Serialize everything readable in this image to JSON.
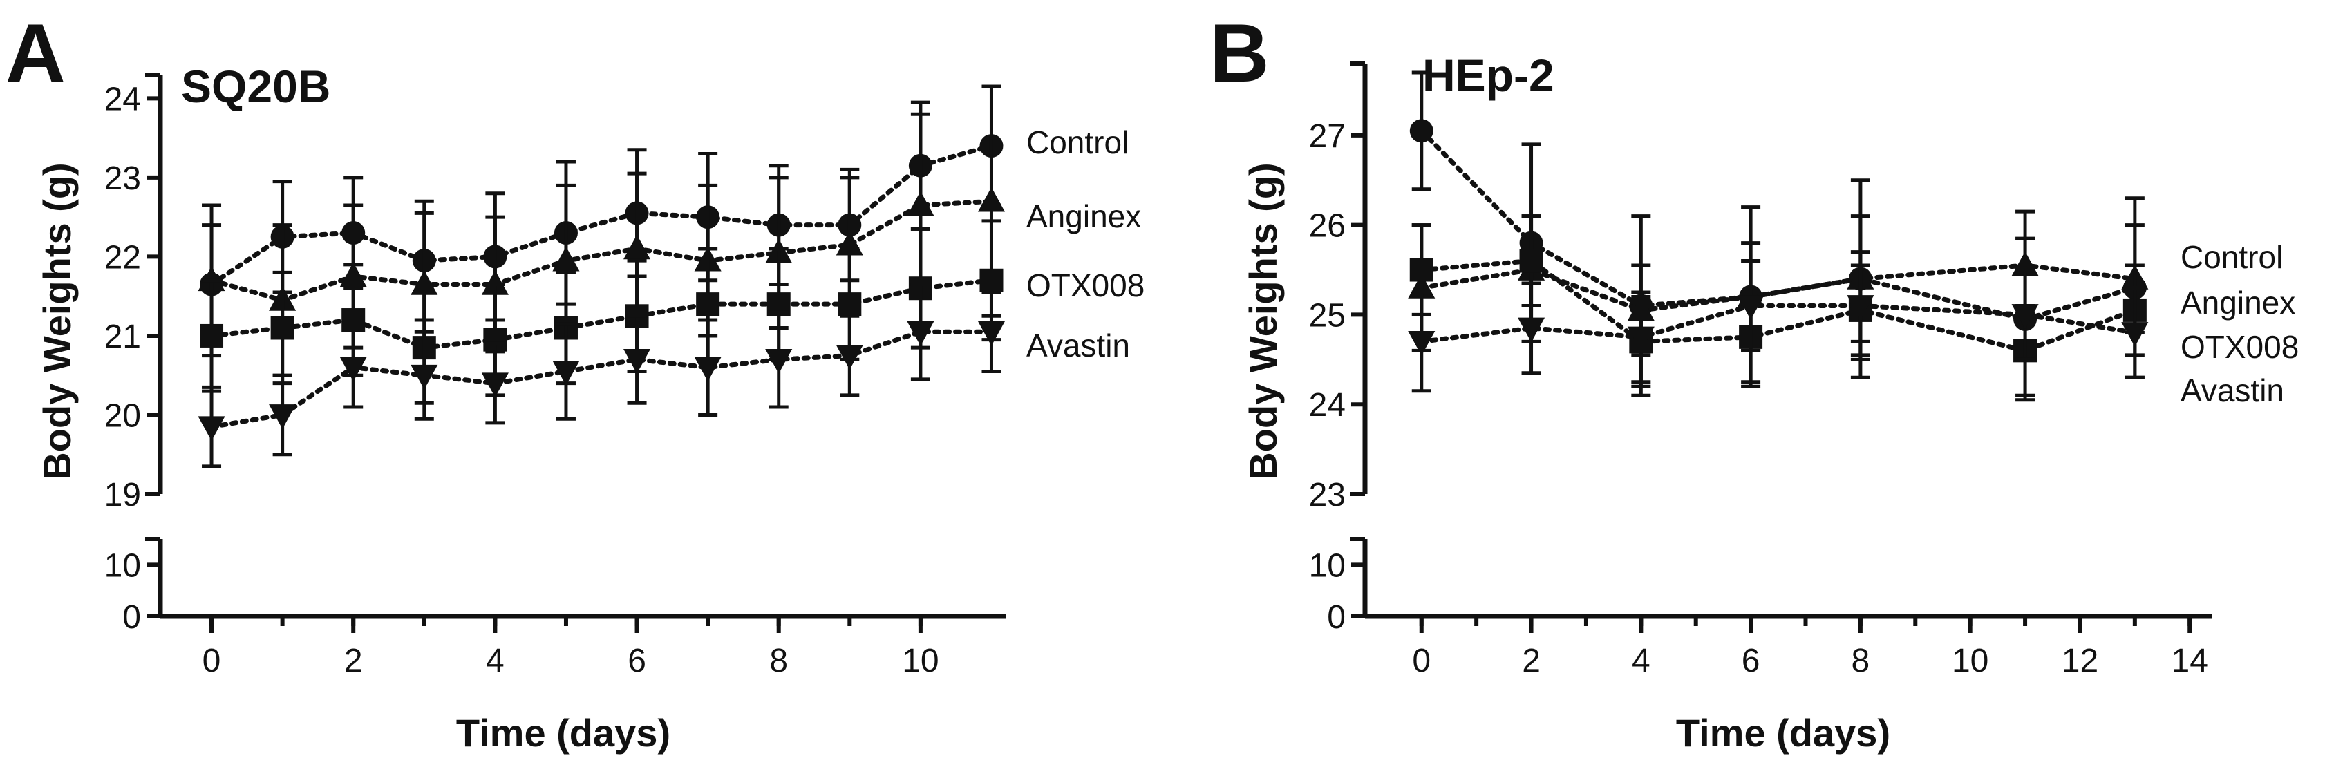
{
  "chart_data": [
    {
      "type": "line",
      "panel_letter": "A",
      "title": "SQ20B",
      "xlabel": "Time (days)",
      "ylabel": "Body Weights (g)",
      "x_ticks": [
        0,
        2,
        4,
        6,
        8,
        10
      ],
      "xlim": [
        -0.4,
        11.2
      ],
      "x_minor_every": 1,
      "ylim_upper": [
        19,
        24.3
      ],
      "y_ticks_upper": [
        19,
        20,
        21,
        22,
        23,
        24
      ],
      "ylim_lower": [
        0,
        15
      ],
      "y_ticks_lower": [
        0,
        10
      ],
      "x": [
        0,
        1,
        2,
        3,
        4,
        5,
        6,
        7,
        8,
        9,
        10,
        11
      ],
      "series": [
        {
          "name": "Control",
          "marker": "circle",
          "values": [
            21.65,
            22.25,
            22.3,
            21.95,
            22.0,
            22.3,
            22.55,
            22.5,
            22.4,
            22.4,
            23.15,
            23.4
          ],
          "errors": [
            0.75,
            0.7,
            0.7,
            0.75,
            0.8,
            0.9,
            0.8,
            0.8,
            0.75,
            0.7,
            0.8,
            0.75
          ]
        },
        {
          "name": "Anginex",
          "marker": "triangle-up",
          "values": [
            21.7,
            21.45,
            21.75,
            21.65,
            21.65,
            21.95,
            22.1,
            21.95,
            22.05,
            22.15,
            22.65,
            22.7
          ],
          "errors": [
            0.95,
            0.95,
            0.9,
            0.9,
            0.85,
            0.95,
            0.95,
            0.95,
            0.95,
            0.85,
            1.15,
            1.45
          ]
        },
        {
          "name": "OTX008",
          "marker": "square",
          "values": [
            21.0,
            21.1,
            21.2,
            20.85,
            20.95,
            21.1,
            21.25,
            21.4,
            21.4,
            21.4,
            21.6,
            21.7
          ],
          "errors": [
            0.7,
            0.7,
            0.7,
            0.7,
            0.7,
            0.7,
            0.7,
            0.7,
            0.7,
            0.7,
            0.75,
            0.75
          ]
        },
        {
          "name": "Avastin",
          "marker": "triangle-down",
          "values": [
            19.85,
            20.0,
            20.6,
            20.5,
            20.4,
            20.55,
            20.7,
            20.6,
            20.7,
            20.75,
            21.05,
            21.05
          ],
          "errors": [
            0.5,
            0.5,
            0.5,
            0.55,
            0.5,
            0.6,
            0.55,
            0.6,
            0.6,
            0.5,
            0.6,
            0.5
          ]
        }
      ],
      "legend": [
        "Control",
        "Anginex",
        "OTX008",
        "Avastin"
      ]
    },
    {
      "type": "line",
      "panel_letter": "B",
      "title": "HEp-2",
      "xlabel": "Time (days)",
      "ylabel": "Body Weights (g)",
      "x_ticks": [
        0,
        2,
        4,
        6,
        8,
        10,
        12,
        14
      ],
      "xlim": [
        -0.4,
        14.4
      ],
      "x_minor_every": 1,
      "ylim_upper": [
        23,
        27.8
      ],
      "y_ticks_upper": [
        23,
        24,
        25,
        26,
        27
      ],
      "ylim_lower": [
        0,
        15
      ],
      "y_ticks_lower": [
        0,
        10
      ],
      "x": [
        0,
        2,
        4,
        6,
        8,
        11,
        13
      ],
      "series": [
        {
          "name": "Control",
          "marker": "circle",
          "values": [
            27.05,
            25.8,
            25.1,
            25.2,
            25.4,
            24.95,
            25.3
          ],
          "errors": [
            0.65,
            1.1,
            1.0,
            1.0,
            1.1,
            0.9,
            1.0
          ]
        },
        {
          "name": "Anginex",
          "marker": "triangle-up",
          "values": [
            25.3,
            25.5,
            25.05,
            25.2,
            25.4,
            25.55,
            25.4
          ],
          "errors": [
            0.7,
            0.6,
            0.5,
            0.6,
            0.7,
            0.6,
            0.6
          ]
        },
        {
          "name": "OTX008",
          "marker": "square",
          "values": [
            25.5,
            25.6,
            24.7,
            24.75,
            25.05,
            24.6,
            25.05
          ],
          "errors": [
            0.5,
            0.5,
            0.5,
            0.5,
            0.5,
            0.5,
            0.5
          ]
        },
        {
          "name": "Avastin",
          "marker": "triangle-down",
          "values": [
            24.7,
            24.85,
            24.75,
            25.1,
            25.1,
            25.0,
            24.8
          ],
          "errors": [
            0.55,
            0.5,
            0.5,
            0.5,
            0.6,
            0.5,
            0.5
          ]
        }
      ],
      "legend": [
        "Control",
        "Anginex",
        "OTX008",
        "Avastin"
      ]
    }
  ]
}
